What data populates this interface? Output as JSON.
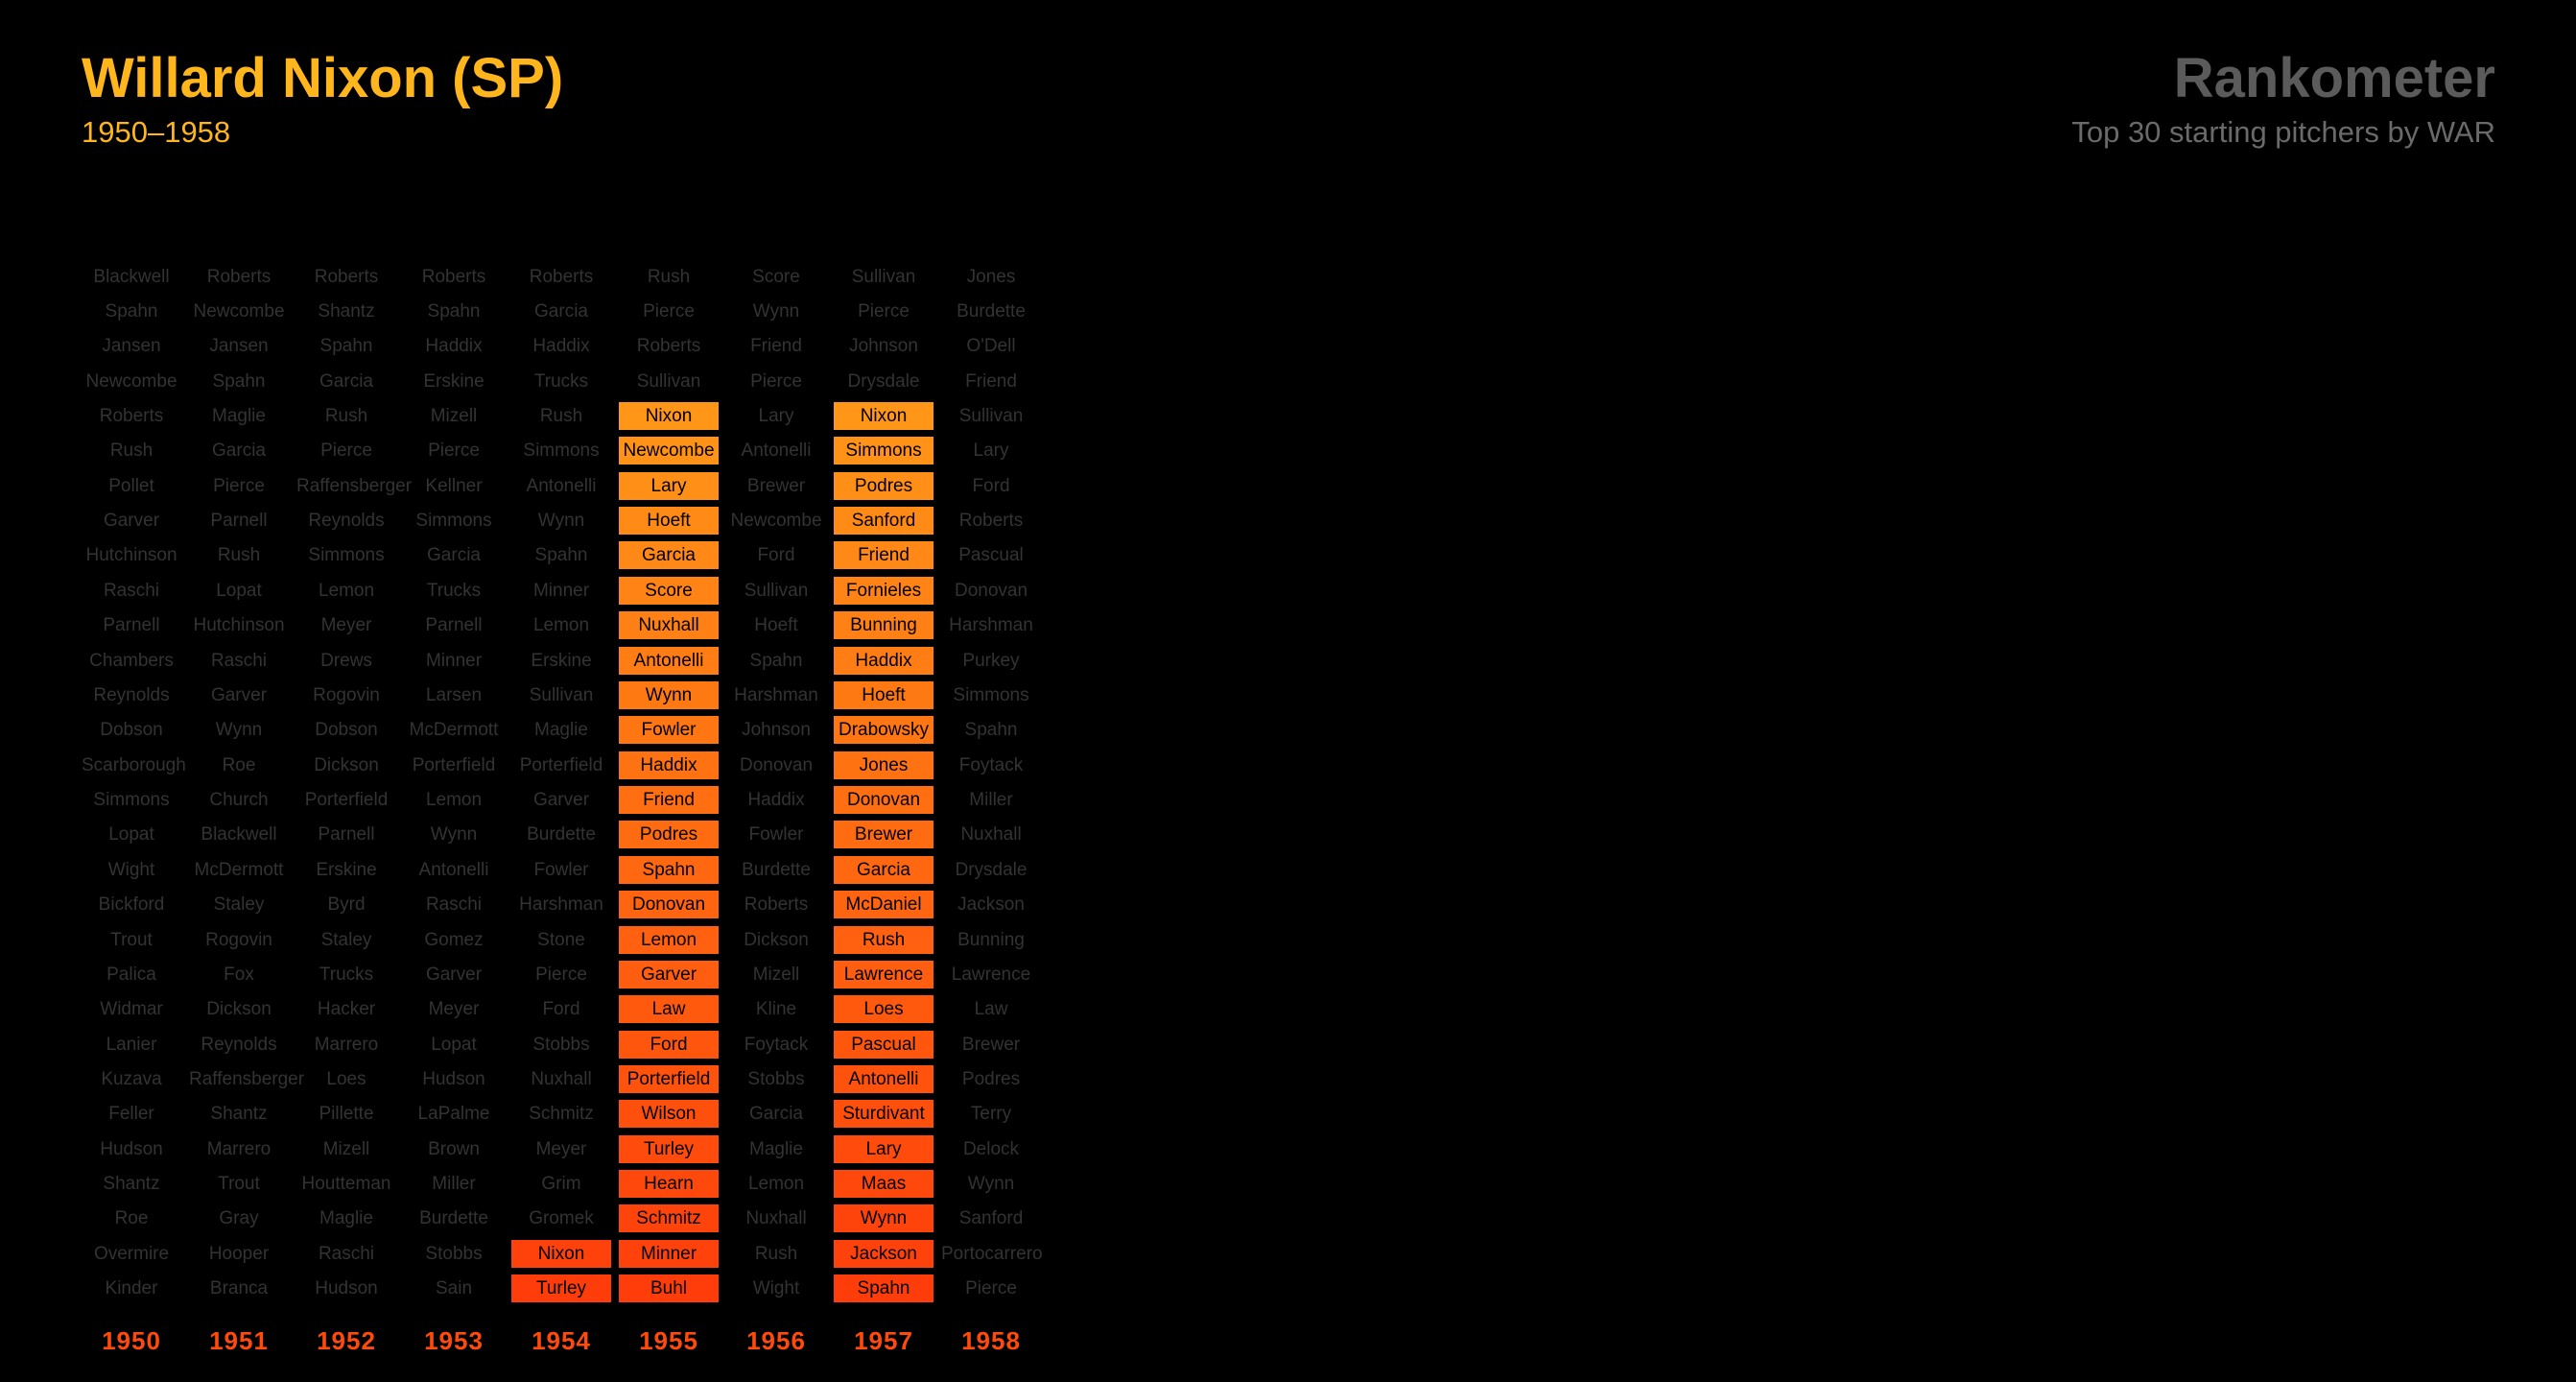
{
  "header": {
    "title": "Willard Nixon (SP)",
    "subtitle": "1950–1958",
    "brand": "Rankometer",
    "tagline": "Top 30 starting pitchers by WAR"
  },
  "colors": {
    "title": "#ffb61c",
    "brand": "#5b5b5b",
    "dim_text": "#333333",
    "year_label": "#ff4a0c",
    "highlight_top": "#ffa41a",
    "highlight_bottom": "#ff3d0a"
  },
  "chart_data": {
    "type": "table",
    "title": "Top 30 starting pitchers by WAR",
    "rows_per_year": 30,
    "highlight_rule": "player appeared on a Willard Nixon team that season",
    "years": [
      {
        "year": "1950",
        "players": [
          "Blackwell",
          "Spahn",
          "Jansen",
          "Newcombe",
          "Roberts",
          "Rush",
          "Pollet",
          "Garver",
          "Hutchinson",
          "Raschi",
          "Parnell",
          "Chambers",
          "Reynolds",
          "Dobson",
          "Scarborough",
          "Simmons",
          "Lopat",
          "Wight",
          "Bickford",
          "Trout",
          "Palica",
          "Widmar",
          "Lanier",
          "Kuzava",
          "Feller",
          "Hudson",
          "Shantz",
          "Roe",
          "Overmire",
          "Kinder"
        ],
        "highlighted": []
      },
      {
        "year": "1951",
        "players": [
          "Roberts",
          "Newcombe",
          "Jansen",
          "Spahn",
          "Maglie",
          "Garcia",
          "Pierce",
          "Parnell",
          "Rush",
          "Lopat",
          "Hutchinson",
          "Raschi",
          "Garver",
          "Wynn",
          "Roe",
          "Church",
          "Blackwell",
          "McDermott",
          "Staley",
          "Rogovin",
          "Fox",
          "Dickson",
          "Reynolds",
          "Raffensberger",
          "Shantz",
          "Marrero",
          "Trout",
          "Gray",
          "Hooper",
          "Branca"
        ],
        "highlighted": []
      },
      {
        "year": "1952",
        "players": [
          "Roberts",
          "Shantz",
          "Spahn",
          "Garcia",
          "Rush",
          "Pierce",
          "Raffensberger",
          "Reynolds",
          "Simmons",
          "Lemon",
          "Meyer",
          "Drews",
          "Rogovin",
          "Dobson",
          "Dickson",
          "Porterfield",
          "Parnell",
          "Erskine",
          "Byrd",
          "Staley",
          "Trucks",
          "Hacker",
          "Marrero",
          "Loes",
          "Pillette",
          "Mizell",
          "Houtteman",
          "Maglie",
          "Raschi",
          "Hudson"
        ],
        "highlighted": []
      },
      {
        "year": "1953",
        "players": [
          "Roberts",
          "Spahn",
          "Haddix",
          "Erskine",
          "Mizell",
          "Pierce",
          "Kellner",
          "Simmons",
          "Garcia",
          "Trucks",
          "Parnell",
          "Minner",
          "Larsen",
          "McDermott",
          "Porterfield",
          "Lemon",
          "Wynn",
          "Antonelli",
          "Raschi",
          "Gomez",
          "Garver",
          "Meyer",
          "Lopat",
          "Hudson",
          "LaPalme",
          "Brown",
          "Miller",
          "Burdette",
          "Stobbs",
          "Sain"
        ],
        "highlighted": []
      },
      {
        "year": "1954",
        "players": [
          "Roberts",
          "Garcia",
          "Haddix",
          "Trucks",
          "Rush",
          "Simmons",
          "Antonelli",
          "Wynn",
          "Spahn",
          "Minner",
          "Lemon",
          "Erskine",
          "Sullivan",
          "Maglie",
          "Porterfield",
          "Garver",
          "Burdette",
          "Fowler",
          "Harshman",
          "Stone",
          "Pierce",
          "Ford",
          "Stobbs",
          "Nuxhall",
          "Schmitz",
          "Meyer",
          "Grim",
          "Gromek",
          "Nixon",
          "Turley"
        ],
        "highlighted": [
          28,
          29
        ]
      },
      {
        "year": "1955",
        "players": [
          "Rush",
          "Pierce",
          "Roberts",
          "Sullivan",
          "Nixon",
          "Newcombe",
          "Lary",
          "Hoeft",
          "Garcia",
          "Score",
          "Nuxhall",
          "Antonelli",
          "Wynn",
          "Fowler",
          "Haddix",
          "Friend",
          "Podres",
          "Spahn",
          "Donovan",
          "Lemon",
          "Garver",
          "Law",
          "Ford",
          "Porterfield",
          "Wilson",
          "Turley",
          "Hearn",
          "Schmitz",
          "Minner",
          "Buhl"
        ],
        "highlighted": [
          4,
          5,
          6,
          7,
          8,
          9,
          10,
          11,
          12,
          13,
          14,
          15,
          16,
          17,
          18,
          19,
          20,
          21,
          22,
          23,
          24,
          25,
          26,
          27,
          28,
          29
        ]
      },
      {
        "year": "1956",
        "players": [
          "Score",
          "Wynn",
          "Friend",
          "Pierce",
          "Lary",
          "Antonelli",
          "Brewer",
          "Newcombe",
          "Ford",
          "Sullivan",
          "Hoeft",
          "Spahn",
          "Harshman",
          "Johnson",
          "Donovan",
          "Haddix",
          "Fowler",
          "Burdette",
          "Roberts",
          "Dickson",
          "Mizell",
          "Kline",
          "Foytack",
          "Stobbs",
          "Garcia",
          "Maglie",
          "Lemon",
          "Nuxhall",
          "Rush",
          "Wight"
        ],
        "highlighted": []
      },
      {
        "year": "1957",
        "players": [
          "Sullivan",
          "Pierce",
          "Johnson",
          "Drysdale",
          "Nixon",
          "Simmons",
          "Podres",
          "Sanford",
          "Friend",
          "Fornieles",
          "Bunning",
          "Haddix",
          "Hoeft",
          "Drabowsky",
          "Jones",
          "Donovan",
          "Brewer",
          "Garcia",
          "McDaniel",
          "Rush",
          "Lawrence",
          "Loes",
          "Pascual",
          "Antonelli",
          "Sturdivant",
          "Lary",
          "Maas",
          "Wynn",
          "Jackson",
          "Spahn"
        ],
        "highlighted": [
          4,
          5,
          6,
          7,
          8,
          9,
          10,
          11,
          12,
          13,
          14,
          15,
          16,
          17,
          18,
          19,
          20,
          21,
          22,
          23,
          24,
          25,
          26,
          27,
          28,
          29
        ]
      },
      {
        "year": "1958",
        "players": [
          "Jones",
          "Burdette",
          "O'Dell",
          "Friend",
          "Sullivan",
          "Lary",
          "Ford",
          "Roberts",
          "Pascual",
          "Donovan",
          "Harshman",
          "Purkey",
          "Simmons",
          "Spahn",
          "Foytack",
          "Miller",
          "Nuxhall",
          "Drysdale",
          "Jackson",
          "Bunning",
          "Lawrence",
          "Law",
          "Brewer",
          "Podres",
          "Terry",
          "Delock",
          "Wynn",
          "Sanford",
          "Portocarrero",
          "Pierce"
        ],
        "highlighted": []
      }
    ]
  }
}
